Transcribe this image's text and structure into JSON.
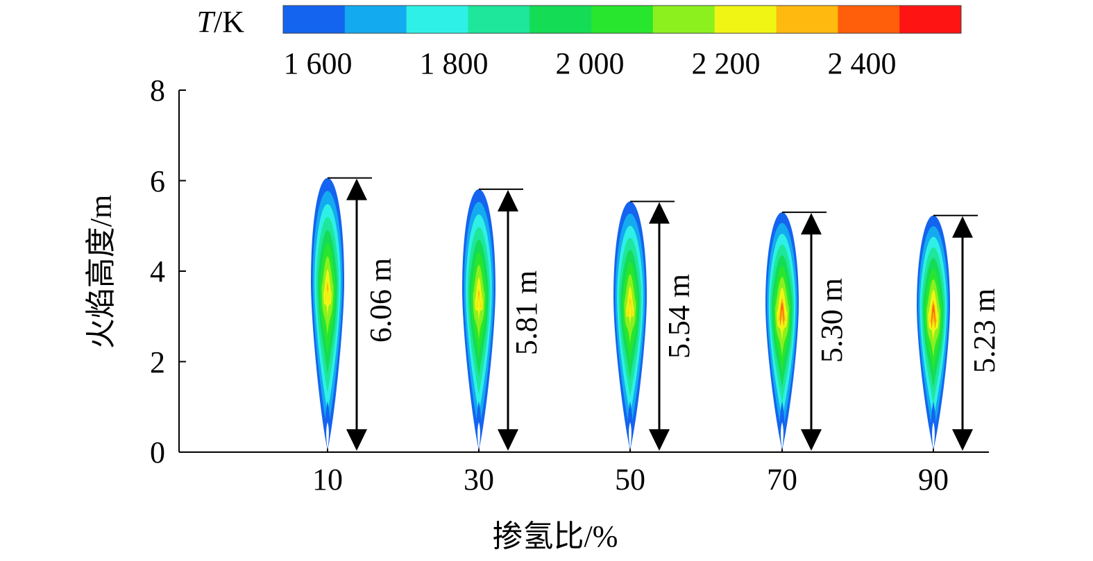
{
  "chart_data": {
    "type": "contour",
    "colorbar": {
      "title_italic": "T",
      "title_rest": "/K",
      "tick_labels": [
        "1 600",
        "1 800",
        "2 000",
        "2 200",
        "2 400"
      ],
      "colors": [
        "#1464f0",
        "#14aaf0",
        "#2ff0e6",
        "#1ee69b",
        "#14dc55",
        "#28e62d",
        "#8cf01e",
        "#f0f514",
        "#ffb90f",
        "#ff5f0a",
        "#ff1414"
      ]
    },
    "xlabel": "掺氢比/%",
    "ylabel": "火焰高度/m",
    "yticks": [
      "0",
      "2",
      "4",
      "6",
      "8"
    ],
    "ylim": [
      0,
      8
    ],
    "categories": [
      "10",
      "30",
      "50",
      "70",
      "90"
    ],
    "flame_heights": [
      6.06,
      5.81,
      5.54,
      5.3,
      5.23
    ],
    "height_labels": [
      "6.06 m",
      "5.81 m",
      "5.54 m",
      "5.30 m",
      "5.23 m"
    ],
    "peak_core_level": [
      8,
      8,
      8,
      9,
      9
    ]
  }
}
